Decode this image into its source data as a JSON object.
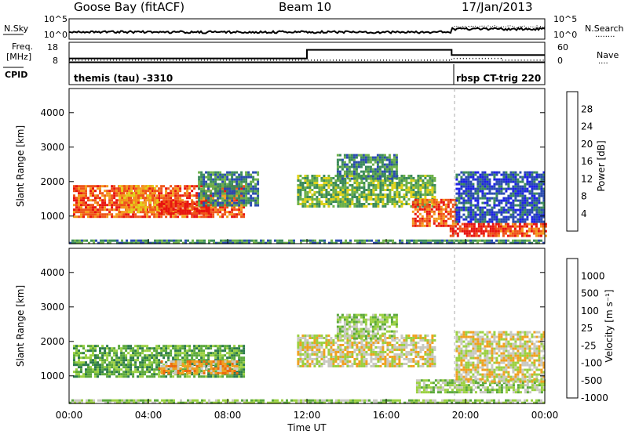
{
  "header": {
    "station": "Goose Bay (fitACF)",
    "beam": "Beam 10",
    "date": "17/Jan/2013"
  },
  "nsky_panel": {
    "left_label": "N.Sky",
    "right_label": "N.Search",
    "left_ticks": [
      "10^5",
      "10^0"
    ],
    "right_ticks": [
      "10^5",
      "10^0"
    ],
    "legend_dots": "........"
  },
  "freq_panel": {
    "left_label_1": "Freq.",
    "left_label_2": "[MHz]",
    "left_ticks": [
      "18",
      "8"
    ],
    "right_label": "Nave",
    "right_ticks": [
      "60",
      "0"
    ],
    "legend_dots": "....",
    "freq_step": {
      "x_hours": [
        0,
        12,
        19.3,
        24
      ],
      "mhz": [
        10,
        15,
        12,
        12
      ]
    },
    "nave_step": {
      "x_hours": [
        0,
        19.3,
        21.8,
        24
      ],
      "nave": [
        6,
        12,
        6,
        5
      ]
    }
  },
  "cpid_panel": {
    "label": "CPID",
    "segments": [
      {
        "start": "00:00",
        "text": "themis (tau) -3310"
      },
      {
        "start": "19:18",
        "text": "rbsp CT-trig 220"
      }
    ]
  },
  "chart_data": [
    {
      "type": "heatmap",
      "panel": "power",
      "ylabel": "Slant Range [km]",
      "yticks": [
        "1000",
        "2000",
        "3000",
        "4000"
      ],
      "ylim": [
        200,
        4700
      ],
      "xlim_hours": [
        0,
        24
      ],
      "colorbar_label": "Power [dB]",
      "colorbar_ticks": [
        "4",
        "8",
        "12",
        "16",
        "20",
        "24",
        "28"
      ],
      "colors": [
        "#1e22e6",
        "#2a4bb0",
        "#3b8a5a",
        "#6cb04a",
        "#e0d21a",
        "#f39a1c",
        "#ef5418",
        "#e81410"
      ],
      "regions": [
        {
          "t0": 0.2,
          "t1": 8.8,
          "r0": 950,
          "r1": 1900,
          "level": 6
        },
        {
          "t0": 2.5,
          "t1": 4.5,
          "r0": 1100,
          "r1": 1900,
          "level": 5
        },
        {
          "t0": 4.5,
          "t1": 7.0,
          "r0": 1050,
          "r1": 1450,
          "level": 7
        },
        {
          "t0": 6.5,
          "t1": 9.5,
          "r0": 1300,
          "r1": 2300,
          "level": 2
        },
        {
          "t0": 11.5,
          "t1": 18.5,
          "r0": 1250,
          "r1": 2200,
          "level": 3
        },
        {
          "t0": 13.5,
          "t1": 16.5,
          "r0": 2100,
          "r1": 2800,
          "level": 2
        },
        {
          "t0": 17.3,
          "t1": 19.5,
          "r0": 700,
          "r1": 1500,
          "level": 6
        },
        {
          "t0": 19.2,
          "t1": 21.5,
          "r0": 450,
          "r1": 800,
          "level": 7
        },
        {
          "t0": 21.5,
          "t1": 24.0,
          "r0": 400,
          "r1": 800,
          "level": 6
        },
        {
          "t0": 19.5,
          "t1": 24.0,
          "r0": 800,
          "r1": 2300,
          "level": 1
        },
        {
          "t0": 0.0,
          "t1": 24.0,
          "r0": 200,
          "r1": 320,
          "level": 2
        }
      ]
    },
    {
      "type": "heatmap",
      "panel": "velocity",
      "ylabel": "Slant Range [km]",
      "yticks": [
        "1000",
        "2000",
        "3000",
        "4000"
      ],
      "ylim": [
        200,
        4700
      ],
      "xlim_hours": [
        0,
        24
      ],
      "xticks": [
        "00:00",
        "04:00",
        "08:00",
        "12:00",
        "16:00",
        "20:00",
        "00:00"
      ],
      "xlabel": "Time UT",
      "colorbar_label": "Velocity [m s⁻¹]",
      "colorbar_ticks": [
        "1000",
        "500",
        "100",
        "25",
        "-25",
        "-100",
        "-500",
        "-1000"
      ],
      "colors": [
        "#1e3ab0",
        "#2b7a4a",
        "#5aa83a",
        "#9ad040",
        "#c8c8c0",
        "#f0a020",
        "#ee6a10",
        "#e81410"
      ],
      "regions": [
        {
          "t0": 0.2,
          "t1": 8.8,
          "r0": 950,
          "r1": 1900,
          "level": 2
        },
        {
          "t0": 4.5,
          "t1": 8.5,
          "r0": 1050,
          "r1": 1450,
          "level": 5
        },
        {
          "t0": 11.5,
          "t1": 18.5,
          "r0": 1250,
          "r1": 2200,
          "level": 4
        },
        {
          "t0": 17.5,
          "t1": 24.0,
          "r0": 500,
          "r1": 900,
          "level": 3
        },
        {
          "t0": 19.5,
          "t1": 24.0,
          "r0": 800,
          "r1": 2300,
          "level": 4
        },
        {
          "t0": 13.5,
          "t1": 16.5,
          "r0": 2100,
          "r1": 2800,
          "level": 3
        },
        {
          "t0": 0.0,
          "t1": 24.0,
          "r0": 200,
          "r1": 320,
          "level": 3
        }
      ]
    }
  ]
}
